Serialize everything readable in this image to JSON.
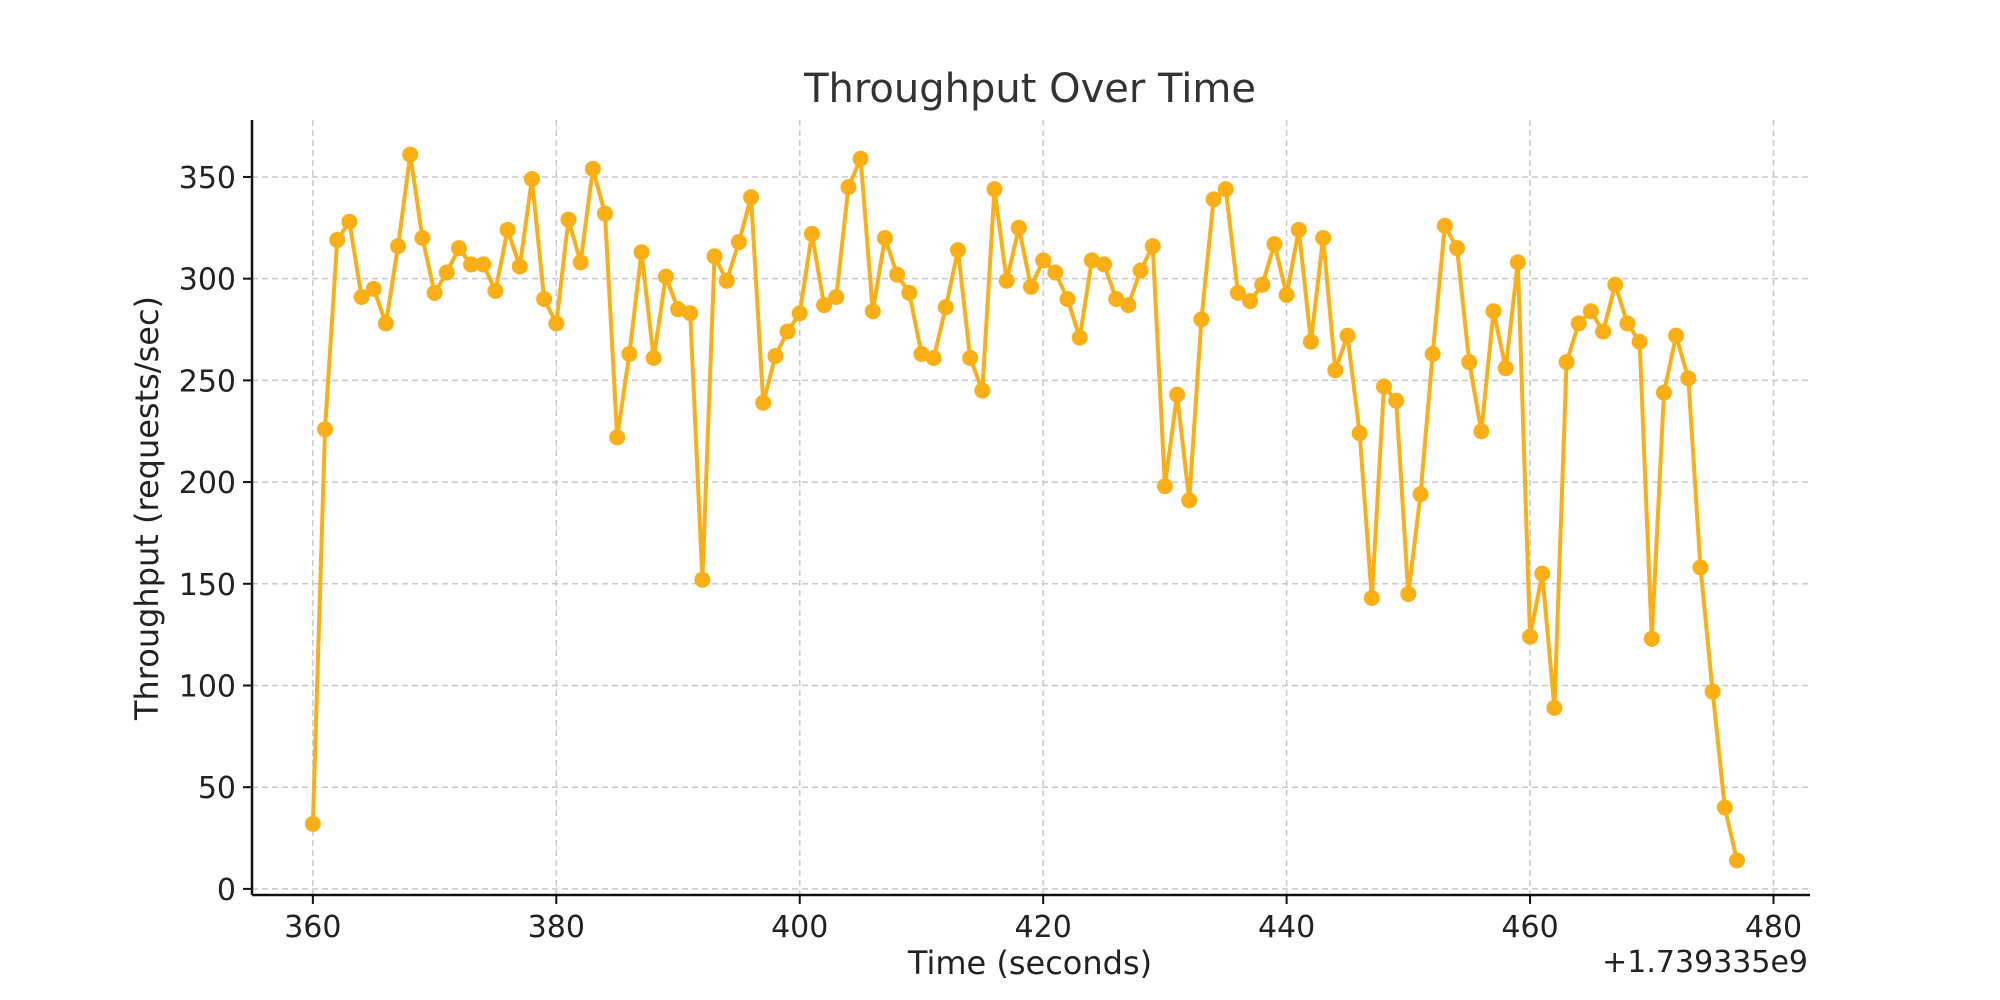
{
  "chart_data": {
    "type": "line",
    "title": "Throughput Over Time",
    "xlabel": "Time (seconds)",
    "ylabel": "Throughput (requests/sec)",
    "x_offset_label": "+1.739335e9",
    "xlim": [
      355,
      483
    ],
    "ylim": [
      -3,
      378
    ],
    "x_ticks": [
      360,
      380,
      400,
      420,
      440,
      460,
      480
    ],
    "y_ticks": [
      0,
      50,
      100,
      150,
      200,
      250,
      300,
      350
    ],
    "grid": true,
    "color": "#FBAF17",
    "marker": "circle",
    "x": [
      360,
      361,
      362,
      363,
      364,
      365,
      366,
      367,
      368,
      369,
      370,
      371,
      372,
      373,
      374,
      375,
      376,
      377,
      378,
      379,
      380,
      381,
      382,
      383,
      384,
      385,
      386,
      387,
      388,
      389,
      390,
      391,
      392,
      393,
      394,
      395,
      396,
      397,
      398,
      399,
      400,
      401,
      402,
      403,
      404,
      405,
      406,
      407,
      408,
      409,
      410,
      411,
      412,
      413,
      414,
      415,
      416,
      417,
      418,
      419,
      420,
      421,
      422,
      423,
      424,
      425,
      426,
      427,
      428,
      429,
      430,
      431,
      432,
      433,
      434,
      435,
      436,
      437,
      438,
      439,
      440,
      441,
      442,
      443,
      444,
      445,
      446,
      447,
      448,
      449,
      450,
      451,
      452,
      453,
      454,
      455,
      456,
      457,
      458,
      459,
      460,
      461,
      462,
      463,
      464,
      465,
      466,
      467,
      468,
      469,
      470,
      471,
      472,
      473,
      474,
      475,
      476,
      477
    ],
    "series": [
      {
        "values": [
          32,
          226,
          319,
          328,
          291,
          295,
          278,
          316,
          361,
          320,
          293,
          303,
          315,
          307,
          307,
          294,
          324,
          306,
          349,
          290,
          278,
          329,
          308,
          354,
          332,
          222,
          263,
          313,
          261,
          301,
          285,
          283,
          152,
          311,
          299,
          318,
          340,
          239,
          262,
          274,
          283,
          322,
          287,
          291,
          345,
          359,
          284,
          320,
          302,
          293,
          263,
          261,
          286,
          314,
          261,
          245,
          344,
          299,
          325,
          296,
          309,
          303,
          290,
          271,
          309,
          307,
          290,
          287,
          304,
          316,
          198,
          243,
          191,
          280,
          339,
          344,
          293,
          289,
          297,
          317,
          292,
          324,
          269,
          320,
          255,
          272,
          224,
          143,
          247,
          240,
          145,
          194,
          263,
          326,
          315,
          259,
          225,
          284,
          256,
          308,
          124,
          155,
          89,
          259,
          278,
          284,
          274,
          297,
          278,
          269,
          123,
          244,
          272,
          251,
          158,
          97,
          40,
          14
        ]
      }
    ]
  }
}
